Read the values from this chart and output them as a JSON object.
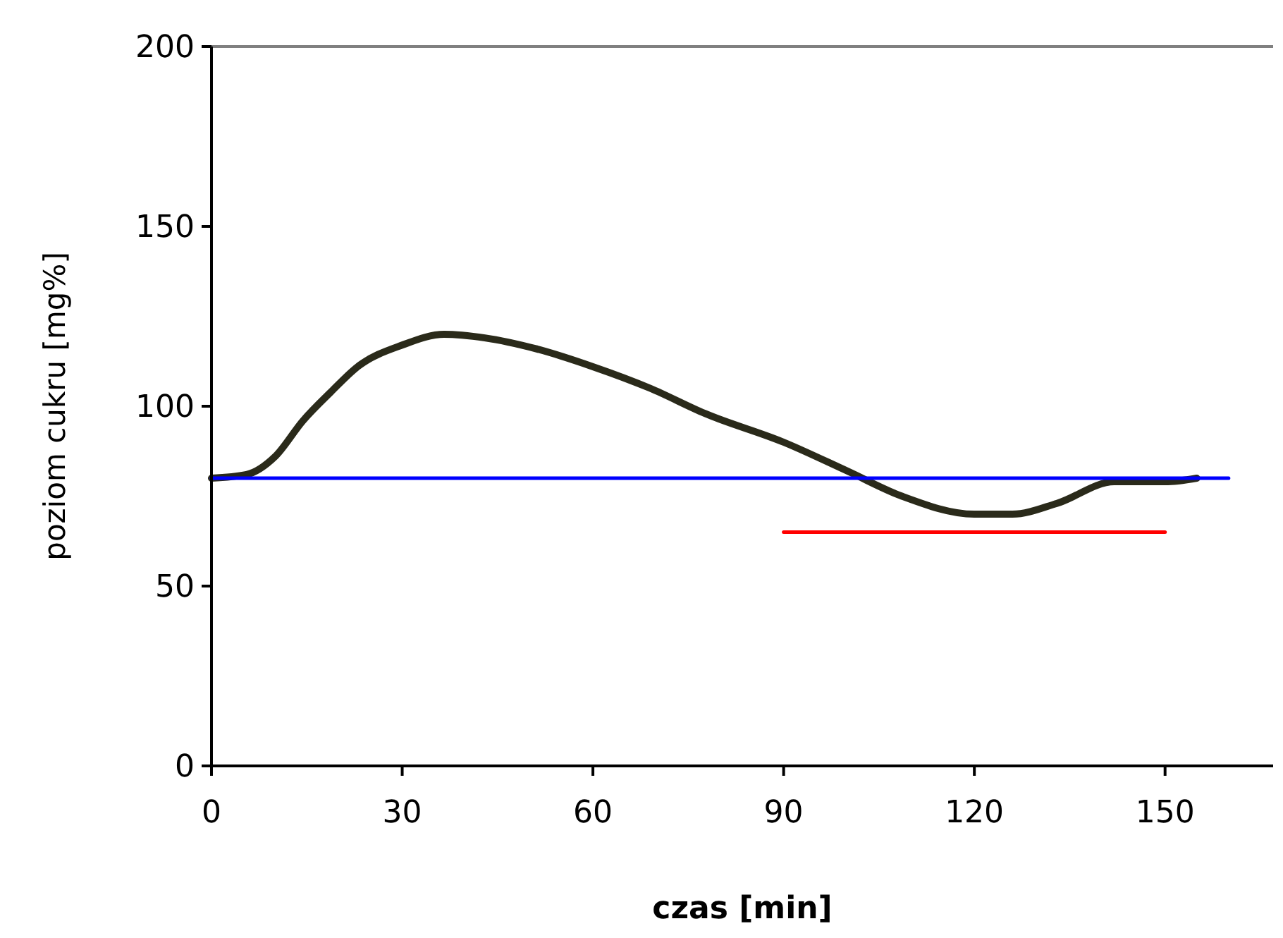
{
  "chart_data": {
    "type": "line",
    "xlabel": "czas [min]",
    "ylabel": "poziom cukru [mg%]",
    "xlim": [
      0,
      167
    ],
    "ylim": [
      0,
      200
    ],
    "xticks": [
      0,
      30,
      60,
      90,
      120,
      150
    ],
    "yticks": [
      0,
      50,
      100,
      150,
      200
    ],
    "grid": false,
    "marker": "none",
    "line_style": "solid",
    "series": [
      {
        "color": "#2a2a1a",
        "x": [
          0,
          5.5,
          10,
          14.4,
          18.8,
          23,
          30,
          36.6,
          43,
          51,
          60,
          69,
          77.6,
          90,
          100,
          108.6,
          120,
          126,
          133,
          142,
          150,
          155
        ],
        "values": [
          80,
          81,
          86,
          96,
          104,
          111,
          117,
          120,
          119,
          116,
          111,
          105,
          98,
          90,
          82,
          75,
          70,
          70,
          73,
          79,
          79,
          80
        ]
      },
      {
        "color": "#0000ff",
        "x": [
          0,
          160
        ],
        "values": [
          80,
          80
        ]
      },
      {
        "color": "#ff0000",
        "x": [
          90,
          150
        ],
        "values": [
          65,
          65
        ]
      }
    ]
  }
}
